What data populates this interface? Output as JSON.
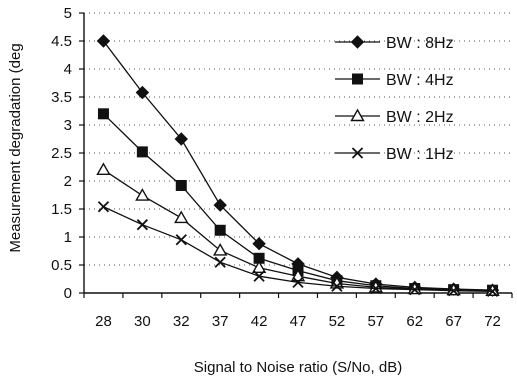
{
  "chart_data": {
    "type": "line",
    "title": "",
    "xlabel": "Signal to Noise ratio (S/No, dB)",
    "ylabel": "Measurement degradation (deg",
    "categories": [
      "28",
      "30",
      "32",
      "37",
      "42",
      "47",
      "52",
      "57",
      "62",
      "67",
      "72"
    ],
    "ylim": [
      0,
      5
    ],
    "yticks": [
      "0",
      "0.5",
      "1",
      "1.5",
      "2",
      "2.5",
      "3",
      "3.5",
      "4",
      "4.5",
      "5"
    ],
    "grid": "horizontal-dotted",
    "legend_position": "top-right",
    "series": [
      {
        "name": "BW : 8Hz",
        "marker": "diamond",
        "values": [
          4.5,
          3.58,
          2.75,
          1.57,
          0.88,
          0.52,
          0.28,
          0.16,
          0.1,
          0.07,
          0.05
        ]
      },
      {
        "name": "BW : 4Hz",
        "marker": "square",
        "values": [
          3.2,
          2.52,
          1.92,
          1.12,
          0.62,
          0.4,
          0.22,
          0.13,
          0.08,
          0.06,
          0.05
        ]
      },
      {
        "name": "BW : 2Hz",
        "marker": "triangle-open",
        "values": [
          2.2,
          1.74,
          1.34,
          0.76,
          0.45,
          0.3,
          0.17,
          0.1,
          0.07,
          0.05,
          0.04
        ]
      },
      {
        "name": "BW : 1Hz",
        "marker": "x",
        "values": [
          1.54,
          1.22,
          0.95,
          0.55,
          0.3,
          0.19,
          0.12,
          0.08,
          0.06,
          0.04,
          0.03
        ]
      }
    ]
  }
}
